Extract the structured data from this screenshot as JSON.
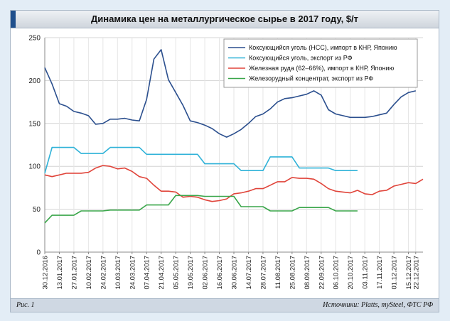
{
  "footer": {
    "figure_label": "Рис. 1",
    "source": "Источники: Platts, mySteel, ФТС РФ"
  },
  "chart_data": {
    "type": "line",
    "title": "Динамика цен на металлургическое сырье в 2017 году, $/т",
    "xlabel": "",
    "ylabel": "$/т",
    "ylim": [
      0,
      250
    ],
    "yticks": [
      0,
      50,
      100,
      150,
      200,
      250
    ],
    "grid": true,
    "legend_position": "top-right",
    "categories": [
      "30.12.2016",
      "13.01.2017",
      "27.01.2017",
      "10.02.2017",
      "24.02.2017",
      "10.03.2017",
      "24.03.2017",
      "07.04.2017",
      "21.04.2017",
      "05.05.2017",
      "19.05.2017",
      "02.06.2017",
      "16.06.2017",
      "30.06.2017",
      "14.07.2017",
      "28.07.2017",
      "11.08.2017",
      "25.08.2017",
      "08.09.2017",
      "22.09.2017",
      "06.10.2017",
      "20.10.2017",
      "03.11.2017",
      "17.11.2017",
      "01.12.2017",
      "15.12.2017",
      "22.12.2017"
    ],
    "x_weeks": [
      0,
      2,
      4,
      6,
      8,
      10,
      12,
      14,
      16,
      18,
      20,
      22,
      24,
      26,
      28,
      30,
      32,
      34,
      36,
      38,
      40,
      42,
      44,
      46,
      48,
      50,
      51
    ],
    "series": [
      {
        "name": "Коксующийся уголь (HCC), импорт в КНР, Японию",
        "color": "#2b4f8e",
        "points": [
          [
            0,
            215
          ],
          [
            1,
            196
          ],
          [
            2,
            173
          ],
          [
            3,
            170
          ],
          [
            4,
            164
          ],
          [
            5,
            162
          ],
          [
            6,
            159
          ],
          [
            7,
            149
          ],
          [
            8,
            150
          ],
          [
            9,
            155
          ],
          [
            10,
            155
          ],
          [
            11,
            156
          ],
          [
            12,
            154
          ],
          [
            13,
            153
          ],
          [
            14,
            178
          ],
          [
            15,
            225
          ],
          [
            16,
            236
          ],
          [
            17,
            201
          ],
          [
            18,
            186
          ],
          [
            19,
            171
          ],
          [
            20,
            153
          ],
          [
            21,
            151
          ],
          [
            22,
            148
          ],
          [
            23,
            144
          ],
          [
            24,
            138
          ],
          [
            25,
            134
          ],
          [
            26,
            138
          ],
          [
            27,
            143
          ],
          [
            28,
            150
          ],
          [
            29,
            158
          ],
          [
            30,
            161
          ],
          [
            31,
            167
          ],
          [
            32,
            175
          ],
          [
            33,
            179
          ],
          [
            34,
            180
          ],
          [
            35,
            182
          ],
          [
            36,
            184
          ],
          [
            37,
            188
          ],
          [
            38,
            183
          ],
          [
            39,
            166
          ],
          [
            40,
            161
          ],
          [
            41,
            159
          ],
          [
            42,
            157
          ],
          [
            43,
            157
          ],
          [
            44,
            157
          ],
          [
            45,
            158
          ],
          [
            46,
            160
          ],
          [
            47,
            162
          ],
          [
            48,
            172
          ],
          [
            49,
            181
          ],
          [
            50,
            186
          ],
          [
            51,
            188
          ]
        ]
      },
      {
        "name": "Коксующийся уголь, экспорт из РФ",
        "color": "#2fb2d8",
        "points": [
          [
            0,
            92
          ],
          [
            1,
            122
          ],
          [
            2,
            122
          ],
          [
            3,
            122
          ],
          [
            4,
            122
          ],
          [
            5,
            115
          ],
          [
            6,
            115
          ],
          [
            7,
            115
          ],
          [
            8,
            115
          ],
          [
            9,
            122
          ],
          [
            10,
            122
          ],
          [
            11,
            122
          ],
          [
            12,
            122
          ],
          [
            13,
            122
          ],
          [
            14,
            114
          ],
          [
            15,
            114
          ],
          [
            16,
            114
          ],
          [
            17,
            114
          ],
          [
            18,
            114
          ],
          [
            19,
            114
          ],
          [
            20,
            114
          ],
          [
            21,
            114
          ],
          [
            22,
            103
          ],
          [
            23,
            103
          ],
          [
            24,
            103
          ],
          [
            25,
            103
          ],
          [
            26,
            103
          ],
          [
            27,
            95
          ],
          [
            28,
            95
          ],
          [
            29,
            95
          ],
          [
            30,
            95
          ],
          [
            31,
            111
          ],
          [
            32,
            111
          ],
          [
            33,
            111
          ],
          [
            34,
            111
          ],
          [
            35,
            98
          ],
          [
            36,
            98
          ],
          [
            37,
            98
          ],
          [
            38,
            98
          ],
          [
            39,
            98
          ],
          [
            40,
            95
          ],
          [
            41,
            95
          ],
          [
            42,
            95
          ],
          [
            43,
            95
          ]
        ]
      },
      {
        "name": "Железная руда (62–66%), импорт в КНР, Японию",
        "color": "#e0443a",
        "points": [
          [
            0,
            90
          ],
          [
            1,
            88
          ],
          [
            2,
            90
          ],
          [
            3,
            92
          ],
          [
            4,
            92
          ],
          [
            5,
            92
          ],
          [
            6,
            93
          ],
          [
            7,
            98
          ],
          [
            8,
            101
          ],
          [
            9,
            100
          ],
          [
            10,
            97
          ],
          [
            11,
            98
          ],
          [
            12,
            94
          ],
          [
            13,
            88
          ],
          [
            14,
            86
          ],
          [
            15,
            78
          ],
          [
            16,
            71
          ],
          [
            17,
            71
          ],
          [
            18,
            70
          ],
          [
            19,
            64
          ],
          [
            20,
            65
          ],
          [
            21,
            64
          ],
          [
            22,
            61
          ],
          [
            23,
            59
          ],
          [
            24,
            60
          ],
          [
            25,
            62
          ],
          [
            26,
            68
          ],
          [
            27,
            69
          ],
          [
            28,
            71
          ],
          [
            29,
            74
          ],
          [
            30,
            74
          ],
          [
            31,
            78
          ],
          [
            32,
            82
          ],
          [
            33,
            82
          ],
          [
            34,
            87
          ],
          [
            35,
            86
          ],
          [
            36,
            86
          ],
          [
            37,
            85
          ],
          [
            38,
            80
          ],
          [
            39,
            74
          ],
          [
            40,
            71
          ],
          [
            41,
            70
          ],
          [
            42,
            69
          ],
          [
            43,
            72
          ],
          [
            44,
            68
          ],
          [
            45,
            67
          ],
          [
            46,
            71
          ],
          [
            47,
            72
          ],
          [
            48,
            77
          ],
          [
            49,
            79
          ],
          [
            50,
            81
          ],
          [
            51,
            80
          ],
          [
            52,
            85
          ]
        ]
      },
      {
        "name": "Железорудный концентрат, экспорт из РФ",
        "color": "#3aa64a",
        "points": [
          [
            0,
            34
          ],
          [
            1,
            43
          ],
          [
            2,
            43
          ],
          [
            3,
            43
          ],
          [
            4,
            43
          ],
          [
            5,
            48
          ],
          [
            6,
            48
          ],
          [
            7,
            48
          ],
          [
            8,
            48
          ],
          [
            9,
            49
          ],
          [
            10,
            49
          ],
          [
            11,
            49
          ],
          [
            12,
            49
          ],
          [
            13,
            49
          ],
          [
            14,
            55
          ],
          [
            15,
            55
          ],
          [
            16,
            55
          ],
          [
            17,
            55
          ],
          [
            18,
            66
          ],
          [
            19,
            66
          ],
          [
            20,
            66
          ],
          [
            21,
            66
          ],
          [
            22,
            65
          ],
          [
            23,
            65
          ],
          [
            24,
            65
          ],
          [
            25,
            65
          ],
          [
            26,
            65
          ],
          [
            27,
            53
          ],
          [
            28,
            53
          ],
          [
            29,
            53
          ],
          [
            30,
            53
          ],
          [
            31,
            48
          ],
          [
            32,
            48
          ],
          [
            33,
            48
          ],
          [
            34,
            48
          ],
          [
            35,
            52
          ],
          [
            36,
            52
          ],
          [
            37,
            52
          ],
          [
            38,
            52
          ],
          [
            39,
            52
          ],
          [
            40,
            48
          ],
          [
            41,
            48
          ],
          [
            42,
            48
          ],
          [
            43,
            48
          ]
        ]
      }
    ]
  }
}
